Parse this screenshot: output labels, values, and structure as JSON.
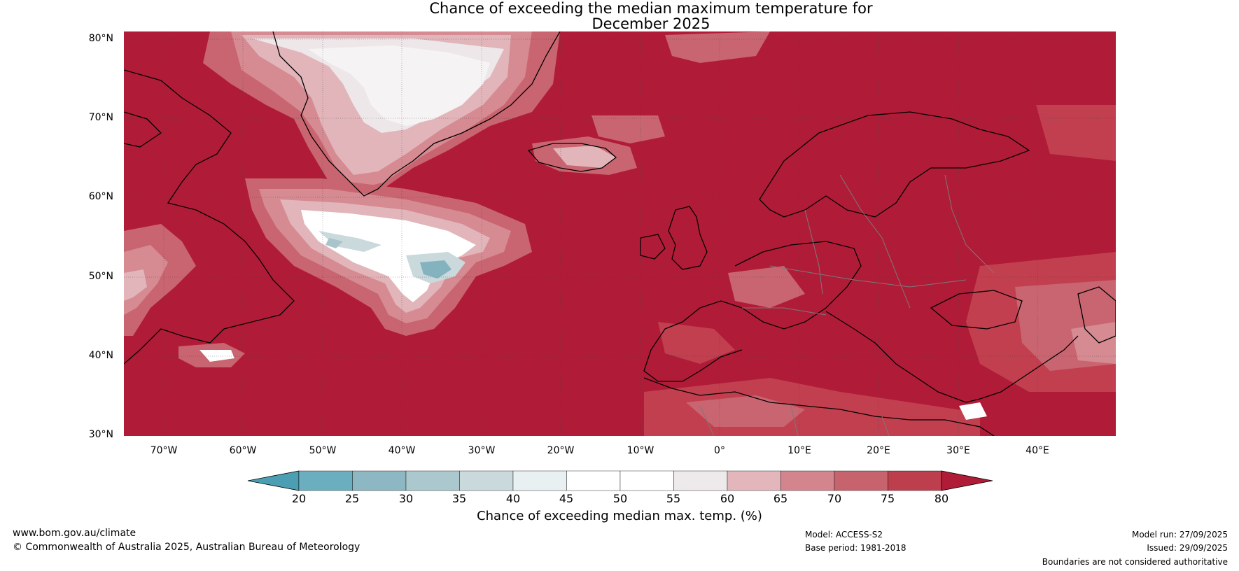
{
  "title": {
    "line1": "Chance of exceeding the median maximum temperature for",
    "line2": "December 2025"
  },
  "map": {
    "lat_labels": [
      "80°N",
      "70°N",
      "60°N",
      "50°N",
      "40°N",
      "30°N"
    ],
    "lon_labels": [
      "70°W",
      "60°W",
      "50°W",
      "40°W",
      "30°W",
      "20°W",
      "10°W",
      "0°",
      "10°E",
      "20°E",
      "30°E",
      "40°E"
    ],
    "colors": {
      "base_red": "#b01c38",
      "c75": "#c23f4f",
      "c70": "#c96570",
      "c65": "#d68a92",
      "c60": "#e1b5ba",
      "c55": "#ede7e9",
      "c50": "#ffffff",
      "c40": "#e6eef0",
      "c35": "#c9d7da",
      "c30": "#a9c5cb",
      "c25": "#84b3bf",
      "c20": "#5ea7b8"
    }
  },
  "colorbar": {
    "ticks": [
      "20",
      "25",
      "30",
      "35",
      "40",
      "45",
      "50",
      "55",
      "60",
      "65",
      "70",
      "75",
      "80"
    ],
    "label": "Chance of exceeding median max. temp. (%)",
    "segment_colors": [
      "#6aaebf",
      "#8db7c3",
      "#aac8cd",
      "#c9d9dc",
      "#e8f0f1",
      "#ffffff",
      "#ffffff",
      "#eee9ea",
      "#e2b6bb",
      "#d3848d",
      "#c7636d",
      "#bd3f4e"
    ],
    "low_arrow_color": "#4c9fb2",
    "high_arrow_color": "#b01c38"
  },
  "footer": {
    "website": "www.bom.gov.au/climate",
    "copyright": "© Commonwealth of Australia 2025, Australian Bureau of Meteorology",
    "model": "Model: ACCESS-S2",
    "base_period": "Base period: 1981-2018",
    "model_run": "Model run: 27/09/2025",
    "issued": "Issued: 29/09/2025",
    "boundaries": "Boundaries are not considered authoritative"
  }
}
